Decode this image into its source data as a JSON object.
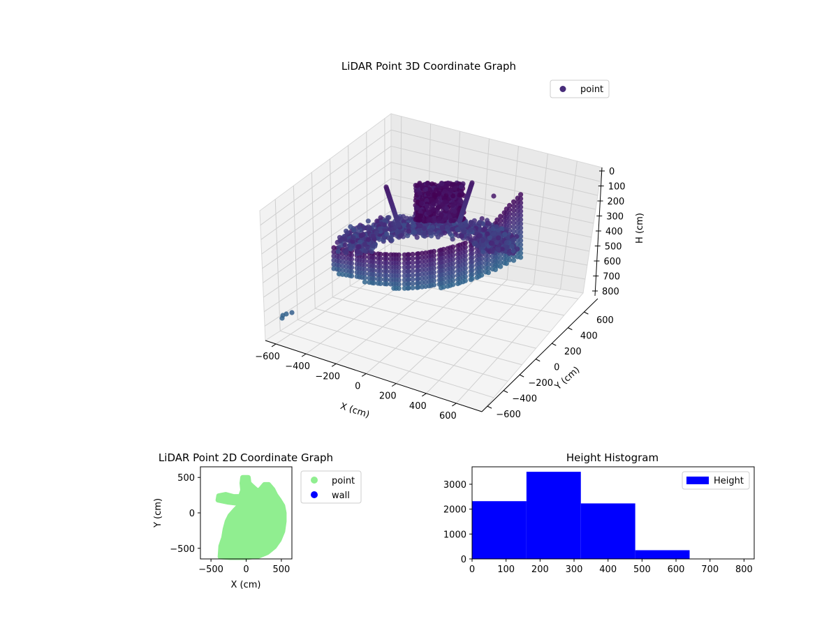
{
  "chart_data": [
    {
      "type": "scatter3d",
      "title": "LiDAR Point 3D Coordinate Graph",
      "xlabel": "X (cm)",
      "ylabel": "Y (cm)",
      "zlabel": "H (cm)",
      "xticks": [
        "−600",
        "−400",
        "−200",
        "0",
        "200",
        "400",
        "600"
      ],
      "yticks": [
        "−600",
        "−400",
        "−200",
        "0",
        "200",
        "400",
        "600"
      ],
      "zticks": [
        "0",
        "100",
        "200",
        "300",
        "400",
        "500",
        "600",
        "700",
        "800"
      ],
      "xlim": [
        -650,
        650
      ],
      "ylim": [
        -650,
        650
      ],
      "zlim": [
        0,
        850
      ],
      "legend": [
        {
          "name": "point",
          "color": "#472c7a"
        }
      ],
      "legend_loc": "upper-right",
      "grid": true
    },
    {
      "type": "scatter",
      "title": "LiDAR Point 2D Coordinate Graph",
      "xlabel": "X (cm)",
      "ylabel": "Y (cm)",
      "xticks": [
        -500,
        0,
        500
      ],
      "yticks": [
        -500,
        0,
        500
      ],
      "xlim": [
        -650,
        650
      ],
      "ylim": [
        -650,
        650
      ],
      "series": [
        {
          "name": "point",
          "color": "#90ee90"
        },
        {
          "name": "wall",
          "color": "#0000ff"
        }
      ],
      "legend_loc": "outside-right"
    },
    {
      "type": "bar",
      "title": "Height Histogram",
      "bin_edges": [
        0,
        160,
        320,
        480,
        640,
        800
      ],
      "values": [
        2320,
        3500,
        2230,
        350,
        0
      ],
      "xticks": [
        0,
        100,
        200,
        300,
        400,
        500,
        600,
        700,
        800
      ],
      "yticks": [
        0,
        1000,
        2000,
        3000
      ],
      "xlim": [
        0,
        830
      ],
      "ylim": [
        0,
        3700
      ],
      "color": "#0000ff",
      "series": [
        {
          "name": "Height",
          "color": "#0000ff"
        }
      ],
      "legend_loc": "upper-right"
    }
  ]
}
